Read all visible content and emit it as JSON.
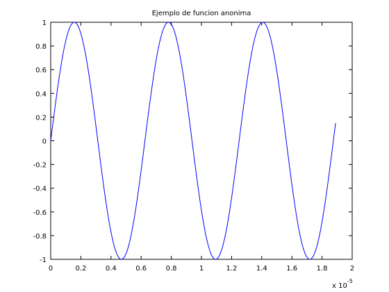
{
  "chart_data": {
    "type": "line",
    "title": "Ejemplo de funcion anonima",
    "xlabel": "",
    "ylabel": "",
    "x_exponent_label": {
      "base": "x 10",
      "exponent": "-5"
    },
    "xlim": [
      0,
      2
    ],
    "ylim": [
      -1,
      1
    ],
    "x_scale_note": "x values are in units of 1e-5",
    "xticks": [
      0,
      0.2,
      0.4,
      0.6,
      0.8,
      1,
      1.2,
      1.4,
      1.6,
      1.8,
      2
    ],
    "xtick_labels": [
      "0",
      "0.2",
      "0.4",
      "0.6",
      "0.8",
      "1",
      "1.2",
      "1.4",
      "1.6",
      "1.8",
      "2"
    ],
    "yticks": [
      -1,
      -0.8,
      -0.6,
      -0.4,
      -0.2,
      0,
      0.2,
      0.4,
      0.6,
      0.8,
      1
    ],
    "ytick_labels": [
      "-1",
      "-0.8",
      "-0.6",
      "-0.4",
      "-0.2",
      "0",
      "0.2",
      "0.4",
      "0.6",
      "0.8",
      "1"
    ],
    "grid": false,
    "series": [
      {
        "color": "#0000ff",
        "function": "sin",
        "amplitude": 1,
        "period": 0.625,
        "x_start": 0,
        "x_end": 1.89
      }
    ]
  }
}
